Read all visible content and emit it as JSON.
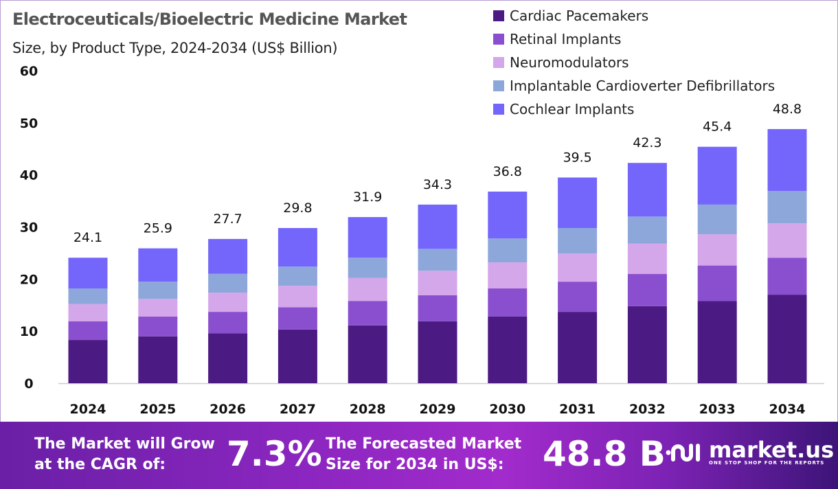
{
  "chart_data": {
    "type": "bar",
    "stacked": true,
    "title": "Electroceuticals/Bioelectric Medicine Market",
    "subtitle": "Size, by Product Type, 2024-2034 (US$ Billion)",
    "xlabel": "",
    "ylabel": "",
    "ylim": [
      0,
      60
    ],
    "yticks": [
      "0",
      "10",
      "20",
      "30",
      "40",
      "50",
      "60"
    ],
    "categories": [
      "2024",
      "2025",
      "2026",
      "2027",
      "2028",
      "2029",
      "2030",
      "2031",
      "2032",
      "2033",
      "2034"
    ],
    "legend_position": "top-right",
    "series": [
      {
        "name": "Cardiac Pacemakers",
        "color": "#4b1a82",
        "values": [
          8.3,
          9.0,
          9.6,
          10.3,
          11.1,
          11.9,
          12.8,
          13.7,
          14.8,
          15.8,
          17.0
        ]
      },
      {
        "name": "Retinal Implants",
        "color": "#8a4fcf",
        "values": [
          3.6,
          3.8,
          4.1,
          4.3,
          4.7,
          5.0,
          5.4,
          5.8,
          6.2,
          6.8,
          7.1
        ]
      },
      {
        "name": "Neuromodulators",
        "color": "#d4a6ea",
        "values": [
          3.3,
          3.4,
          3.7,
          4.1,
          4.4,
          4.7,
          5.0,
          5.4,
          5.8,
          6.0,
          6.6
        ]
      },
      {
        "name": "Implantable Cardioverter Defibrillators",
        "color": "#8ea7da",
        "values": [
          3.0,
          3.3,
          3.6,
          3.7,
          3.9,
          4.2,
          4.6,
          4.9,
          5.2,
          5.7,
          6.2
        ]
      },
      {
        "name": "Cochlear Implants",
        "color": "#7466fb",
        "values": [
          5.9,
          6.4,
          6.7,
          7.4,
          7.8,
          8.5,
          9.0,
          9.7,
          10.3,
          11.1,
          11.9
        ]
      }
    ],
    "totals": [
      "24.1",
      "25.9",
      "27.7",
      "29.8",
      "31.9",
      "34.3",
      "36.8",
      "39.5",
      "42.3",
      "45.4",
      "48.8"
    ]
  },
  "footer": {
    "cagr_label": "The Market will Grow at the CAGR of:",
    "cagr_line1": "The Market will Grow",
    "cagr_line2": "at the CAGR of:",
    "cagr_value": "7.3%",
    "forecast_line1": "The Forecasted Market",
    "forecast_line2": "Size for 2034 in US$:",
    "forecast_value": "48.8 B",
    "brand": "market.us",
    "tagline": "ONE STOP SHOP FOR THE REPORTS"
  }
}
